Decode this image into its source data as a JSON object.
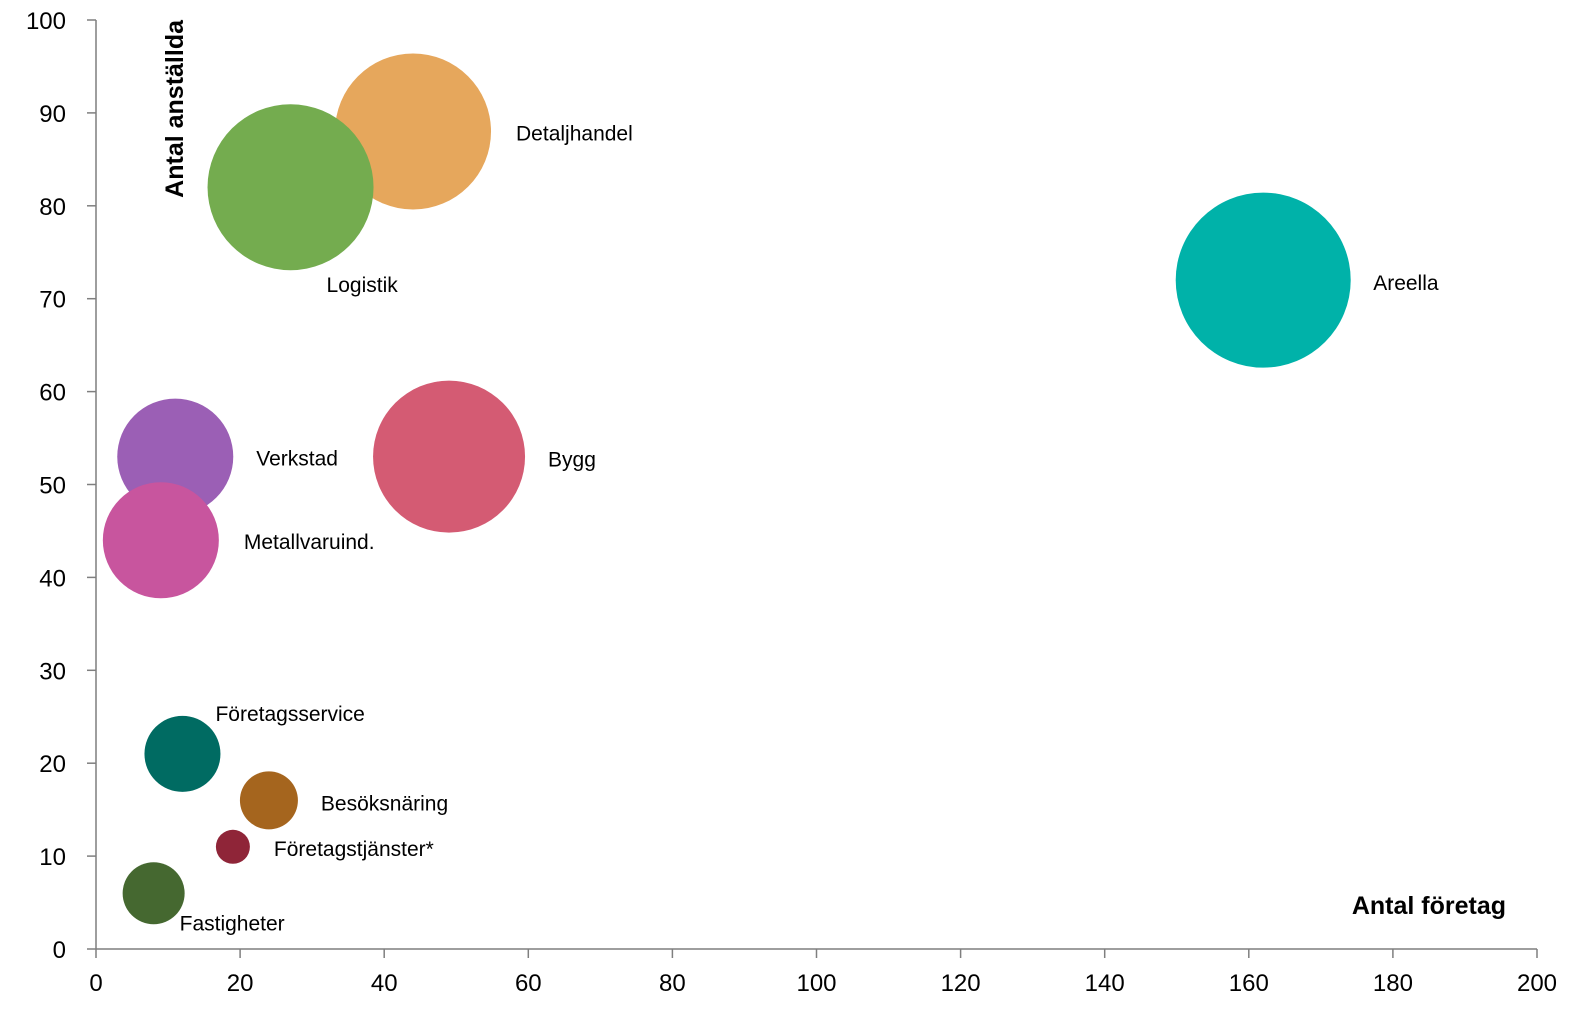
{
  "chart_data": {
    "type": "scatter",
    "variant": "bubble",
    "xlabel": "Antal företag",
    "ylabel": "Antal anställda",
    "xlim": [
      0,
      200
    ],
    "ylim": [
      0,
      100
    ],
    "x_ticks": [
      0,
      20,
      40,
      60,
      80,
      100,
      120,
      140,
      160,
      180,
      200
    ],
    "y_ticks": [
      0,
      10,
      20,
      30,
      40,
      50,
      60,
      70,
      80,
      90,
      100
    ],
    "grid": false,
    "legend": "none",
    "points": [
      {
        "label": "Areella",
        "x": 162,
        "y": 72,
        "size": 175,
        "color": "#00B2A9"
      },
      {
        "label": "Detaljhandel",
        "x": 44,
        "y": 88,
        "size": 156,
        "color": "#E6A75C"
      },
      {
        "label": "Logistik",
        "x": 27,
        "y": 82,
        "size": 166,
        "color": "#74AC4F"
      },
      {
        "label": "Bygg",
        "x": 49,
        "y": 53,
        "size": 152,
        "color": "#D45B73"
      },
      {
        "label": "Verkstad",
        "x": 11,
        "y": 53,
        "size": 116,
        "color": "#9B5FB5"
      },
      {
        "label": "Metallvaruind.",
        "x": 9,
        "y": 44,
        "size": 116,
        "color": "#C8559E"
      },
      {
        "label": "Företagsservice",
        "x": 12,
        "y": 21,
        "size": 76,
        "color": "#006B62"
      },
      {
        "label": "Besöksnäring",
        "x": 24,
        "y": 16,
        "size": 58,
        "color": "#A5651E"
      },
      {
        "label": "Företagstjänster*",
        "x": 19,
        "y": 11,
        "size": 34,
        "color": "#8F2538"
      },
      {
        "label": "Fastigheter",
        "x": 8,
        "y": 6,
        "size": 62,
        "color": "#456830"
      }
    ]
  }
}
